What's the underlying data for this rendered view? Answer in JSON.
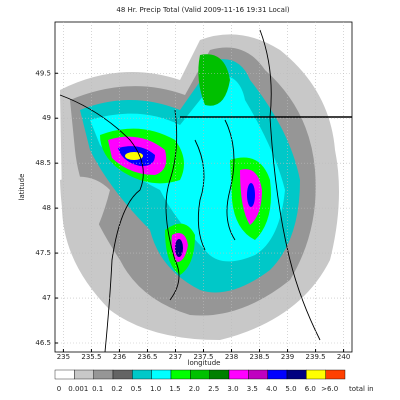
{
  "chart_data": {
    "type": "map",
    "title": "48 Hr. Precip Total (Valid 2009-11-16 19:31 Local)",
    "x_label": "longitude",
    "y_label": "latitude",
    "xlim": [
      234.85,
      240.15
    ],
    "xticks": [
      235,
      235.5,
      236,
      236.5,
      237,
      237.5,
      238,
      238.5,
      239,
      239.5,
      240
    ],
    "ylim": [
      46.4,
      50.07
    ],
    "yticks": [
      46.5,
      47,
      47.5,
      48,
      48.5,
      49,
      49.5
    ],
    "grid": true,
    "colorbar": {
      "labels": [
        "0",
        "0.001",
        "0.1",
        "0.2",
        "0.5",
        "1.0",
        "1.5",
        "2.0",
        "2.5",
        "3.0",
        "3.5",
        "4.0",
        "5.0",
        "6.0",
        ">6.0"
      ],
      "colors": [
        "#ffffff",
        "#c8c8c8",
        "#969696",
        "#646464",
        "#00c8c8",
        "#00ffff",
        "#00ff00",
        "#00c000",
        "#008000",
        "#ff00ff",
        "#c000c0",
        "#0000ff",
        "#000080",
        "#ffff00",
        "#ff4000"
      ],
      "unit": "total in"
    }
  }
}
